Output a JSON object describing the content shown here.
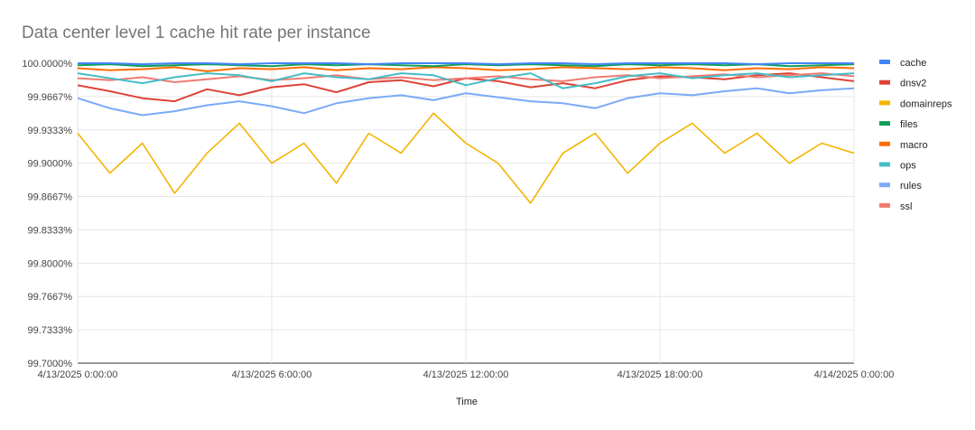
{
  "chart_data": {
    "type": "line",
    "title": "Data center level 1 cache hit rate per instance",
    "xlabel": "Time",
    "ylabel": "",
    "x_ticks": [
      "4/13/2025 0:00:00",
      "4/13/2025 6:00:00",
      "4/13/2025 12:00:00",
      "4/13/2025 18:00:00",
      "4/14/2025 0:00:00"
    ],
    "x_range": [
      "4/13/2025 0:00:00",
      "4/14/2025 0:00:00"
    ],
    "y_ticks": [
      "100.0000%",
      "99.9667%",
      "99.9333%",
      "99.9000%",
      "99.8667%",
      "99.8333%",
      "99.8000%",
      "99.7667%",
      "99.7333%",
      "99.7000%"
    ],
    "ylim": [
      99.7,
      100.0
    ],
    "grid": true,
    "legend_position": "right",
    "series": [
      {
        "name": "cache",
        "color": "#4285f4",
        "values": [
          100.0,
          100.0,
          99.999,
          100.0,
          100.0,
          99.999,
          100.0,
          100.0,
          100.0,
          99.999,
          100.0,
          100.0,
          100.0,
          99.999,
          100.0,
          100.0,
          99.999,
          100.0,
          100.0,
          100.0,
          100.0,
          99.999,
          100.0,
          100.0,
          100.0
        ]
      },
      {
        "name": "dnsv2",
        "color": "#db4437",
        "values": [
          99.978,
          99.972,
          99.965,
          99.962,
          99.974,
          99.968,
          99.976,
          99.979,
          99.971,
          99.981,
          99.983,
          99.977,
          99.985,
          99.982,
          99.976,
          99.98,
          99.975,
          99.983,
          99.987,
          99.986,
          99.984,
          99.988,
          99.99,
          99.986,
          99.982
        ]
      },
      {
        "name": "domainreps",
        "color": "#f4b400",
        "values": [
          99.93,
          99.89,
          99.92,
          99.87,
          99.91,
          99.94,
          99.9,
          99.92,
          99.88,
          99.93,
          99.91,
          99.95,
          99.92,
          99.9,
          99.86,
          99.91,
          99.93,
          99.89,
          99.92,
          99.94,
          99.91,
          99.93,
          99.9,
          99.92,
          99.91
        ]
      },
      {
        "name": "files",
        "color": "#0f9d58",
        "values": [
          99.998,
          99.999,
          99.997,
          99.998,
          99.999,
          99.998,
          99.997,
          99.999,
          99.998,
          99.999,
          99.998,
          99.997,
          99.999,
          99.998,
          99.999,
          99.998,
          99.997,
          99.999,
          99.998,
          99.999,
          99.998,
          99.999,
          99.997,
          99.998,
          99.999
        ]
      },
      {
        "name": "macro",
        "color": "#ff6d01",
        "values": [
          99.995,
          99.993,
          99.994,
          99.996,
          99.992,
          99.995,
          99.994,
          99.996,
          99.993,
          99.995,
          99.994,
          99.996,
          99.995,
          99.993,
          99.994,
          99.996,
          99.995,
          99.994,
          99.996,
          99.995,
          99.993,
          99.995,
          99.994,
          99.996,
          99.995
        ]
      },
      {
        "name": "ops",
        "color": "#46bdc6",
        "values": [
          99.99,
          99.985,
          99.98,
          99.986,
          99.99,
          99.988,
          99.982,
          99.99,
          99.986,
          99.984,
          99.99,
          99.988,
          99.978,
          99.985,
          99.99,
          99.975,
          99.98,
          99.987,
          99.99,
          99.985,
          99.988,
          99.99,
          99.986,
          99.988,
          99.99
        ]
      },
      {
        "name": "rules",
        "color": "#7baaf7",
        "values": [
          99.965,
          99.955,
          99.948,
          99.952,
          99.958,
          99.962,
          99.957,
          99.95,
          99.96,
          99.965,
          99.968,
          99.963,
          99.97,
          99.966,
          99.962,
          99.96,
          99.955,
          99.965,
          99.97,
          99.968,
          99.972,
          99.975,
          99.97,
          99.973,
          99.975
        ]
      },
      {
        "name": "ssl",
        "color": "#f07b72",
        "values": [
          99.985,
          99.983,
          99.986,
          99.981,
          99.984,
          99.987,
          99.983,
          99.985,
          99.988,
          99.984,
          99.986,
          99.983,
          99.985,
          99.987,
          99.984,
          99.982,
          99.986,
          99.988,
          99.985,
          99.987,
          99.989,
          99.986,
          99.988,
          99.99,
          99.987
        ]
      }
    ]
  }
}
